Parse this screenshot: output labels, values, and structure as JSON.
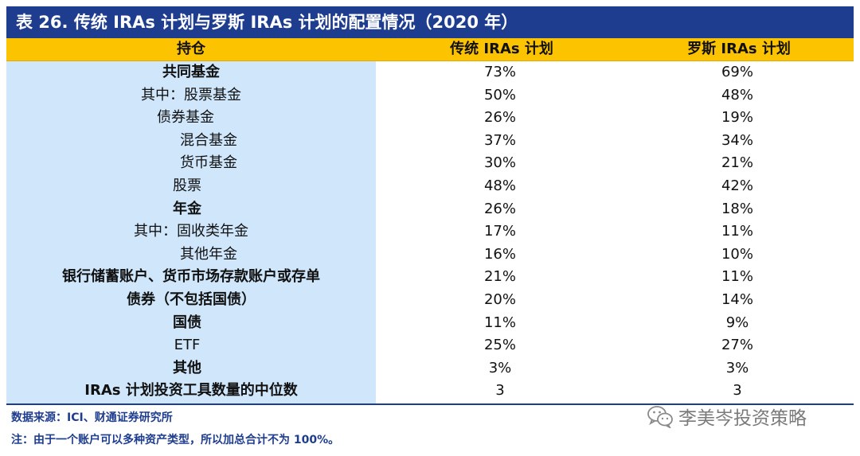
{
  "title": "表 26. 传统 IRAs 计划与罗斯 IRAs 计划的配置情况（2020 年）",
  "header": {
    "holding": "持仓",
    "traditional": "传统 IRAs 计划",
    "roth": "罗斯 IRAs 计划"
  },
  "rows": [
    {
      "label": "共同基金",
      "traditional": "73%",
      "roth": "69%"
    },
    {
      "label": "其中：股票基金",
      "traditional": "50%",
      "roth": "48%"
    },
    {
      "label": "债券基金",
      "traditional": "26%",
      "roth": "19%"
    },
    {
      "label": "混合基金",
      "traditional": "37%",
      "roth": "34%"
    },
    {
      "label": "货币基金",
      "traditional": "30%",
      "roth": "21%"
    },
    {
      "label": "股票",
      "traditional": "48%",
      "roth": "42%"
    },
    {
      "label": "年金",
      "traditional": "26%",
      "roth": "18%"
    },
    {
      "label": "其中：固收类年金",
      "traditional": "17%",
      "roth": "11%"
    },
    {
      "label": "其他年金",
      "traditional": "16%",
      "roth": "10%"
    },
    {
      "label": "银行储蓄账户、货币市场存款账户或存单",
      "traditional": "21%",
      "roth": "11%"
    },
    {
      "label": "债券（不包括国债）",
      "traditional": "20%",
      "roth": "14%"
    },
    {
      "label": "国债",
      "traditional": "11%",
      "roth": "9%"
    },
    {
      "label": "ETF",
      "traditional": "25%",
      "roth": "27%"
    },
    {
      "label": "其他",
      "traditional": "3%",
      "roth": "3%"
    },
    {
      "label": "IRAs 计划投资工具数量的中位数",
      "traditional": "3",
      "roth": "3"
    }
  ],
  "footnotes": {
    "source": "数据来源：ICI、财通证券研究所",
    "note": "注：由于一个账户可以多种资产类型，所以加总合计不为 100%。"
  },
  "watermark": {
    "icon": "wechat-icon",
    "text": "李美岑投资策略"
  },
  "colors": {
    "title_bg": "#1f3d8f",
    "header_bg": "#fcc300",
    "label_col_bg": "#cfe6fb",
    "footnote_text": "#1f3d8f"
  }
}
